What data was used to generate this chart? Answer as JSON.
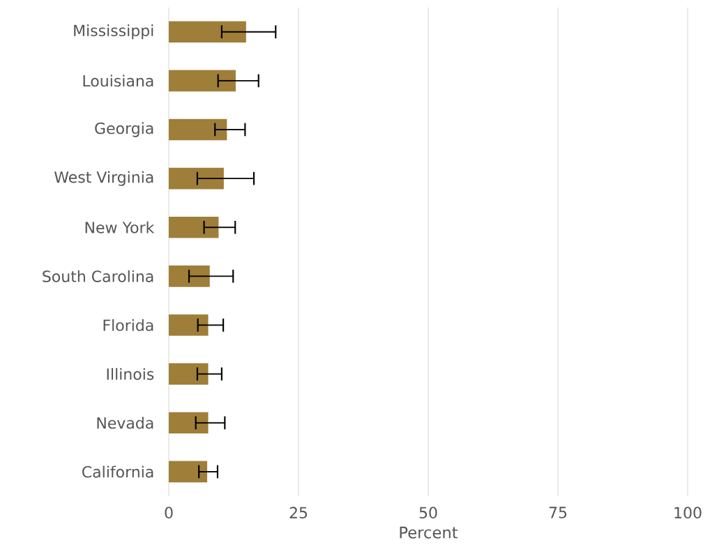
{
  "chart_data": {
    "type": "bar",
    "orientation": "horizontal",
    "xlabel": "Percent",
    "categories": [
      "Mississippi",
      "Louisiana",
      "Georgia",
      "West Virginia",
      "New York",
      "South Carolina",
      "Florida",
      "Illinois",
      "Nevada",
      "California"
    ],
    "values": [
      14.9,
      12.9,
      11.2,
      10.6,
      9.6,
      7.9,
      7.6,
      7.6,
      7.6,
      7.4
    ],
    "errors": [
      [
        10.2,
        20.6
      ],
      [
        9.5,
        17.3
      ],
      [
        8.9,
        14.7
      ],
      [
        5.5,
        16.4
      ],
      [
        6.8,
        12.8
      ],
      [
        3.9,
        12.4
      ],
      [
        5.6,
        10.5
      ],
      [
        5.5,
        10.2
      ],
      [
        5.2,
        10.8
      ],
      [
        5.8,
        9.4
      ]
    ],
    "color": "#9e7e38",
    "xlim": [
      0,
      100
    ],
    "xticks": [
      0,
      25,
      50,
      75,
      100
    ],
    "grid": "x"
  }
}
